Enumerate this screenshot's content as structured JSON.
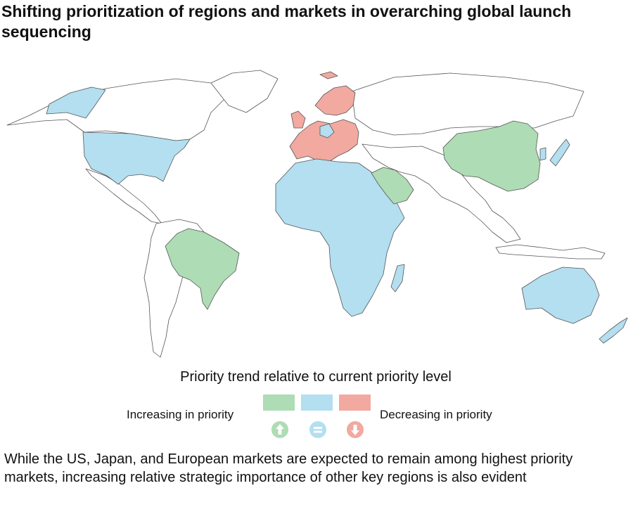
{
  "title": "Shifting prioritization of regions and markets in overarching global launch sequencing",
  "legend": {
    "title": "Priority trend relative to current priority level",
    "left_label": "Increasing in priority",
    "right_label": "Decreasing in priority",
    "items": [
      {
        "name": "increasing",
        "color": "#aedcb5",
        "icon": "arrow-up-icon"
      },
      {
        "name": "unchanged",
        "color": "#b3dff0",
        "icon": "equals-icon"
      },
      {
        "name": "decreasing",
        "color": "#f2a9a0",
        "icon": "arrow-down-icon"
      }
    ]
  },
  "regions": {
    "increasing": [
      "China",
      "Brazil",
      "Saudi Arabia"
    ],
    "unchanged": [
      "United States",
      "Alaska",
      "Japan",
      "South Korea",
      "Africa",
      "Australia",
      "New Zealand",
      "Madagascar",
      "Germany"
    ],
    "decreasing": [
      "Western Europe",
      "Nordics",
      "Eastern Europe"
    ]
  },
  "colors": {
    "border": "#555555",
    "unhighlighted": "#ffffff"
  },
  "caption": "While the US, Japan, and European markets are expected to remain among highest priority markets, increasing relative strategic importance of other key regions is also evident"
}
